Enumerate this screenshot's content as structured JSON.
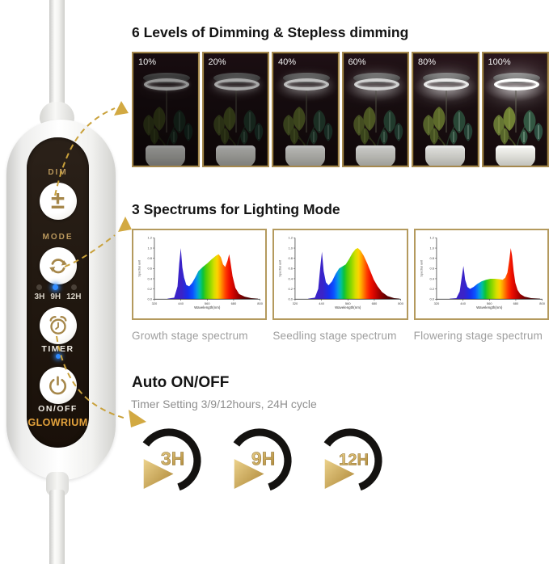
{
  "controller": {
    "brand": "GLOWRIUM",
    "buttons": {
      "dim": {
        "label": "DIM",
        "icon": "plus-minus-icon"
      },
      "mode": {
        "label": "MODE",
        "icon": "cycle-arrows-icon"
      },
      "timer": {
        "label": "TIMER",
        "icon": "alarm-clock-icon"
      },
      "power": {
        "label": "ON/OFF",
        "icon": "power-icon"
      }
    },
    "timer_leds": [
      {
        "label": "3H",
        "on": false
      },
      {
        "label": "9H",
        "on": true
      },
      {
        "label": "12H",
        "on": false
      }
    ],
    "status_led_color": "#2f8bff"
  },
  "sections": {
    "dimming": {
      "title": "6 Levels of Dimming & Stepless dimming",
      "levels": [
        "10%",
        "20%",
        "40%",
        "60%",
        "80%",
        "100%"
      ]
    },
    "spectrum": {
      "title": "3 Spectrums for Lighting Mode"
    },
    "auto": {
      "title": "Auto ON/OFF",
      "subtitle": "Timer Setting 3/9/12hours, 24H cycle",
      "options": [
        "3H",
        "9H",
        "12H"
      ]
    }
  },
  "colors": {
    "accent_gold": "#c9a13b",
    "brand_gold": "#e3a23c",
    "panel_black": "#20170f",
    "led_blue": "#2f8bff"
  },
  "chart_data": [
    {
      "type": "area",
      "title": "Growth stage spectrum",
      "xlabel": "Wavelength(nm)",
      "ylabel": "Spectral unit",
      "xticks": [
        320,
        440,
        560,
        680,
        800
      ],
      "xlim": [
        320,
        800
      ],
      "ylim": [
        0,
        1.2
      ],
      "points": [
        [
          380,
          0.01
        ],
        [
          410,
          0.03
        ],
        [
          425,
          0.25
        ],
        [
          433,
          0.7
        ],
        [
          440,
          1.0
        ],
        [
          447,
          0.62
        ],
        [
          455,
          0.42
        ],
        [
          465,
          0.28
        ],
        [
          478,
          0.25
        ],
        [
          492,
          0.32
        ],
        [
          505,
          0.42
        ],
        [
          520,
          0.55
        ],
        [
          540,
          0.63
        ],
        [
          560,
          0.7
        ],
        [
          580,
          0.78
        ],
        [
          600,
          0.85
        ],
        [
          612,
          0.88
        ],
        [
          622,
          0.82
        ],
        [
          632,
          0.68
        ],
        [
          642,
          0.63
        ],
        [
          652,
          0.75
        ],
        [
          660,
          0.88
        ],
        [
          666,
          0.72
        ],
        [
          675,
          0.45
        ],
        [
          688,
          0.22
        ],
        [
          705,
          0.1
        ],
        [
          730,
          0.05
        ],
        [
          760,
          0.02
        ],
        [
          790,
          0.01
        ]
      ]
    },
    {
      "type": "area",
      "title": "Seedling stage spectrum",
      "xlabel": "Wavelength(nm)",
      "ylabel": "Spectral unit",
      "xticks": [
        320,
        440,
        560,
        680,
        800
      ],
      "xlim": [
        320,
        800
      ],
      "ylim": [
        0,
        1.2
      ],
      "points": [
        [
          380,
          0.01
        ],
        [
          410,
          0.03
        ],
        [
          425,
          0.2
        ],
        [
          435,
          0.65
        ],
        [
          442,
          0.93
        ],
        [
          450,
          0.55
        ],
        [
          460,
          0.33
        ],
        [
          472,
          0.27
        ],
        [
          488,
          0.35
        ],
        [
          505,
          0.5
        ],
        [
          520,
          0.6
        ],
        [
          535,
          0.64
        ],
        [
          550,
          0.68
        ],
        [
          565,
          0.78
        ],
        [
          580,
          0.9
        ],
        [
          595,
          0.98
        ],
        [
          605,
          1.0
        ],
        [
          618,
          0.95
        ],
        [
          632,
          0.85
        ],
        [
          648,
          0.7
        ],
        [
          662,
          0.55
        ],
        [
          678,
          0.38
        ],
        [
          695,
          0.25
        ],
        [
          715,
          0.14
        ],
        [
          740,
          0.06
        ],
        [
          770,
          0.02
        ],
        [
          795,
          0.01
        ]
      ]
    },
    {
      "type": "area",
      "title": "Flowering stage spectrum",
      "xlabel": "Wavelength(nm)",
      "ylabel": "Spectral unit",
      "xticks": [
        320,
        440,
        560,
        680,
        800
      ],
      "xlim": [
        320,
        800
      ],
      "ylim": [
        0,
        1.2
      ],
      "points": [
        [
          380,
          0.01
        ],
        [
          410,
          0.02
        ],
        [
          425,
          0.15
        ],
        [
          435,
          0.45
        ],
        [
          442,
          0.65
        ],
        [
          450,
          0.38
        ],
        [
          460,
          0.24
        ],
        [
          472,
          0.2
        ],
        [
          488,
          0.24
        ],
        [
          505,
          0.3
        ],
        [
          525,
          0.35
        ],
        [
          545,
          0.38
        ],
        [
          565,
          0.4
        ],
        [
          585,
          0.4
        ],
        [
          605,
          0.39
        ],
        [
          620,
          0.38
        ],
        [
          632,
          0.42
        ],
        [
          642,
          0.52
        ],
        [
          650,
          0.75
        ],
        [
          657,
          1.0
        ],
        [
          663,
          0.85
        ],
        [
          670,
          0.55
        ],
        [
          678,
          0.32
        ],
        [
          688,
          0.18
        ],
        [
          700,
          0.1
        ],
        [
          720,
          0.05
        ],
        [
          750,
          0.02
        ],
        [
          790,
          0.01
        ]
      ]
    }
  ]
}
